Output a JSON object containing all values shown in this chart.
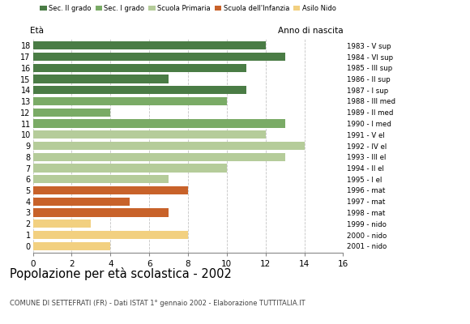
{
  "ages": [
    18,
    17,
    16,
    15,
    14,
    13,
    12,
    11,
    10,
    9,
    8,
    7,
    6,
    5,
    4,
    3,
    2,
    1,
    0
  ],
  "values": [
    12,
    13,
    11,
    7,
    11,
    10,
    4,
    13,
    12,
    14,
    13,
    10,
    7,
    8,
    5,
    7,
    3,
    8,
    4
  ],
  "years": [
    "1983 - V sup",
    "1984 - VI sup",
    "1985 - III sup",
    "1986 - II sup",
    "1987 - I sup",
    "1988 - III med",
    "1989 - II med",
    "1990 - I med",
    "1991 - V el",
    "1992 - IV el",
    "1993 - III el",
    "1994 - II el",
    "1995 - I el",
    "1996 - mat",
    "1997 - mat",
    "1998 - mat",
    "1999 - nido",
    "2000 - nido",
    "2001 - nido"
  ],
  "categories": {
    "Sec. II grado": {
      "ages": [
        18,
        17,
        16,
        15,
        14
      ],
      "color": "#4a7c45"
    },
    "Sec. I grado": {
      "ages": [
        13,
        12,
        11
      ],
      "color": "#7aab66"
    },
    "Scuola Primaria": {
      "ages": [
        10,
        9,
        8,
        7,
        6
      ],
      "color": "#b5cc9a"
    },
    "Scuola dell'Infanzia": {
      "ages": [
        5,
        4,
        3
      ],
      "color": "#c8622a"
    },
    "Asilo Nido": {
      "ages": [
        2,
        1,
        0
      ],
      "color": "#f2d080"
    }
  },
  "title": "Popolazione per età scolastica - 2002",
  "subtitle": "COMUNE DI SETTEFRATI (FR) - Dati ISTAT 1° gennaio 2002 - Elaborazione TUTTITALIA.IT",
  "ylabel_left": "Età",
  "ylabel_right": "Anno di nascita",
  "xlim": [
    0,
    16
  ],
  "xticks": [
    0,
    2,
    4,
    6,
    8,
    10,
    12,
    14,
    16
  ],
  "background_color": "#ffffff",
  "grid_color": "#aaaaaa"
}
